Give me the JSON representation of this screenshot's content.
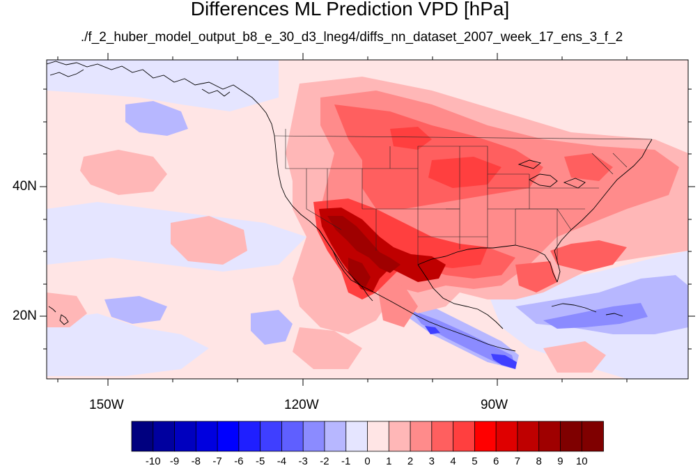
{
  "title": "Differences ML Prediction VPD [hPa]",
  "subtitle": "./f_2_huber_model_output_b8_e_30_d3_lneg4/diffs_nn_dataset_2007_week_17_ens_3_f_2",
  "axes": {
    "lon_labels": [
      "150W",
      "120W",
      "90W"
    ],
    "lat_labels": [
      "40N",
      "20N"
    ]
  },
  "colorbar": {
    "labels": [
      "-10",
      "-9",
      "-8",
      "-7",
      "-6",
      "-5",
      "-4",
      "-3",
      "-2",
      "-1",
      "0",
      "1",
      "2",
      "3",
      "4",
      "5",
      "6",
      "7",
      "8",
      "9",
      "10"
    ],
    "colors": [
      "#00007f",
      "#00009f",
      "#0000bf",
      "#0000df",
      "#0000ff",
      "#1f1fff",
      "#3f3fff",
      "#5f5fff",
      "#8b8bff",
      "#b7b7ff",
      "#e5e5ff",
      "#ffe5e5",
      "#ffb7b7",
      "#ff8b8b",
      "#ff5f5f",
      "#ff3f3f",
      "#ff0000",
      "#df0000",
      "#bf0000",
      "#9f0000",
      "#7f0000",
      "#7f0000"
    ]
  },
  "map_colors": {
    "background": "#ffe5e5",
    "light_red": "#ffb7b7",
    "mid_red": "#ff8b8b",
    "red": "#ff5f5f",
    "strong_red": "#ff3f3f",
    "dark_red": "#bf0000",
    "deep_red": "#9f0000",
    "light_blue": "#e5e5ff",
    "blue": "#b7b7ff",
    "mid_blue": "#8b8bff",
    "deep_blue": "#3f3fff"
  }
}
